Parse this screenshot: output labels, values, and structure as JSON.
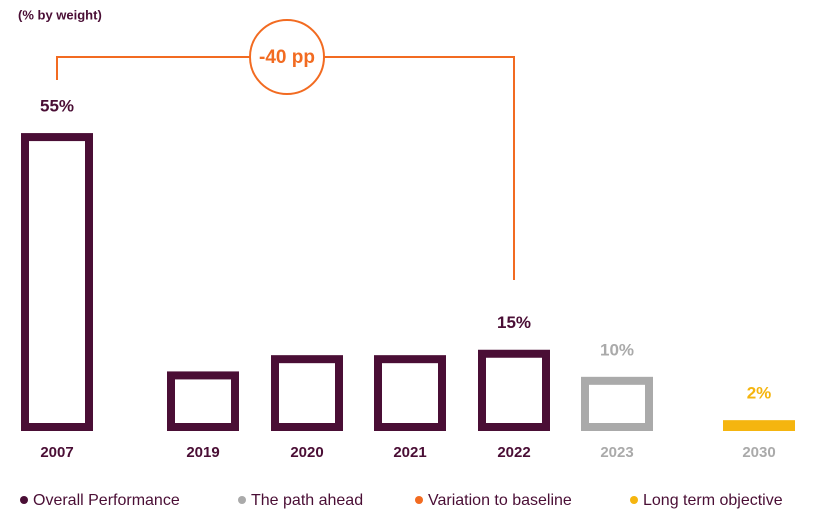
{
  "chart_data": {
    "type": "bar",
    "subtitle": "(% by weight)",
    "categories": [
      "2007",
      "2019",
      "2020",
      "2021",
      "2022",
      "2023",
      "2030"
    ],
    "values": [
      55,
      11,
      14,
      14,
      15,
      10,
      2
    ],
    "value_labels": [
      "55%",
      null,
      null,
      null,
      "15%",
      "10%",
      "2%"
    ],
    "colors": [
      "#4a0e35",
      "#4a0e35",
      "#4a0e35",
      "#4a0e35",
      "#4a0e35",
      "#aaaaaa",
      "#f5b50f"
    ],
    "ylim": [
      0,
      60
    ],
    "annotation": {
      "text": "-40 pp",
      "color": "#f26b21"
    },
    "legend": [
      {
        "name": "Overall Performance",
        "color": "#4a0e35"
      },
      {
        "name": "The path ahead",
        "color": "#aaaaaa"
      },
      {
        "name": "Variation to baseline",
        "color": "#f26b21"
      },
      {
        "name": "Long term objective",
        "color": "#f5b50f"
      }
    ]
  }
}
